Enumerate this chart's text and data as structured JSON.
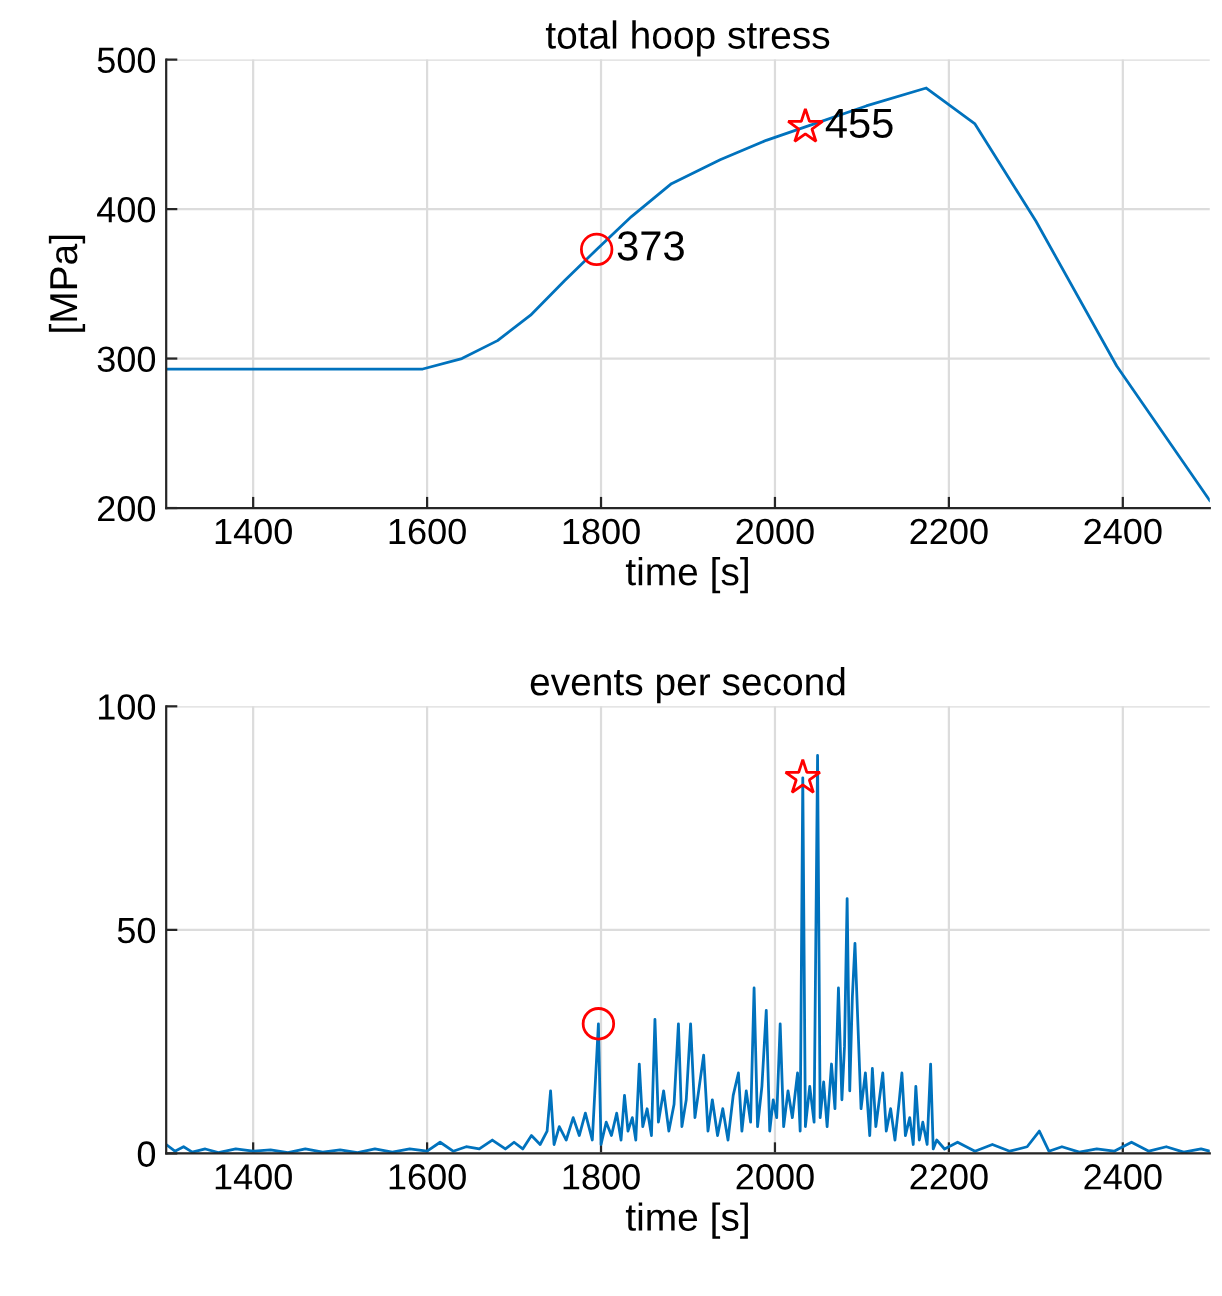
{
  "chart_data": [
    {
      "type": "line",
      "title": "total hoop stress",
      "xlabel": "time [s]",
      "ylabel": "[MPa]",
      "xlim": [
        1300,
        2500
      ],
      "ylim": [
        200,
        500
      ],
      "xticks": [
        1400,
        1600,
        1800,
        2000,
        2200,
        2400
      ],
      "yticks": [
        200,
        300,
        400,
        500
      ],
      "grid": true,
      "series": [
        {
          "color": "#0072bd",
          "x": [
            1300,
            1400,
            1500,
            1595,
            1640,
            1681,
            1719,
            1758,
            1795,
            1835,
            1881,
            1937,
            1990,
            2035,
            2105,
            2174,
            2230,
            2300,
            2393,
            2500
          ],
          "values": [
            293,
            293,
            293,
            293,
            300,
            312,
            329,
            352,
            373,
            395,
            417,
            433,
            446,
            455,
            469,
            481,
            457,
            392,
            295,
            205
          ]
        },
        {
          "type": "scatter",
          "marker": "circle",
          "color": "#ff0000",
          "x": [
            1795
          ],
          "values": [
            373
          ],
          "value_labels": [
            "373"
          ]
        },
        {
          "type": "scatter",
          "marker": "star",
          "color": "#ff0000",
          "x": [
            2035
          ],
          "values": [
            455
          ],
          "value_labels": [
            "455"
          ]
        }
      ]
    },
    {
      "type": "line",
      "title": "events per second",
      "xlabel": "time [s]",
      "xlim": [
        1300,
        2500
      ],
      "ylim": [
        0,
        100
      ],
      "xticks": [
        1400,
        1600,
        1800,
        2000,
        2200,
        2400
      ],
      "yticks": [
        0,
        50,
        100
      ],
      "grid": true,
      "series": [
        {
          "color": "#0072bd",
          "x": [
            1300,
            1310,
            1320,
            1330,
            1345,
            1360,
            1380,
            1400,
            1420,
            1440,
            1460,
            1480,
            1500,
            1520,
            1540,
            1560,
            1580,
            1600,
            1615,
            1630,
            1645,
            1660,
            1675,
            1690,
            1700,
            1710,
            1720,
            1730,
            1738,
            1742,
            1746,
            1752,
            1760,
            1768,
            1775,
            1782,
            1790,
            1797,
            1800,
            1806,
            1812,
            1818,
            1823,
            1827,
            1831,
            1836,
            1840,
            1844,
            1848,
            1853,
            1858,
            1862,
            1866,
            1872,
            1878,
            1884,
            1889,
            1893,
            1898,
            1903,
            1908,
            1913,
            1918,
            1923,
            1928,
            1934,
            1940,
            1946,
            1952,
            1958,
            1962,
            1967,
            1972,
            1976,
            1980,
            1985,
            1990,
            1994,
            1998,
            2002,
            2006,
            2010,
            2015,
            2020,
            2026,
            2029,
            2032,
            2035,
            2040,
            2045,
            2049,
            2052,
            2056,
            2060,
            2065,
            2069,
            2073,
            2077,
            2080,
            2083,
            2086,
            2089,
            2092,
            2095,
            2099,
            2104,
            2109,
            2112,
            2116,
            2120,
            2124,
            2128,
            2133,
            2138,
            2143,
            2146,
            2150,
            2155,
            2159,
            2162,
            2166,
            2170,
            2175,
            2179,
            2182,
            2186,
            2195,
            2210,
            2230,
            2250,
            2270,
            2290,
            2304,
            2315,
            2330,
            2350,
            2370,
            2390,
            2410,
            2430,
            2450,
            2470,
            2490,
            2500
          ],
          "values": [
            2,
            0.5,
            1.5,
            0.3,
            1,
            0.2,
            1,
            0.5,
            0.8,
            0.2,
            1,
            0.3,
            0.8,
            0.2,
            1,
            0.3,
            1,
            0.5,
            2.5,
            0.5,
            1.5,
            1,
            3,
            1,
            2.5,
            1,
            4,
            2,
            5,
            14,
            2,
            6,
            3,
            8,
            4,
            9,
            3,
            29,
            2,
            7,
            4,
            9,
            3,
            13,
            5,
            8,
            3,
            20,
            6,
            10,
            4,
            30,
            7,
            14,
            5,
            11,
            29,
            6,
            12,
            29,
            8,
            15,
            22,
            5,
            12,
            4,
            10,
            3,
            13,
            18,
            5,
            14,
            7,
            37,
            6,
            15,
            32,
            5,
            12,
            8,
            29,
            6,
            14,
            8,
            18,
            5,
            84,
            6,
            15,
            7,
            89,
            8,
            16,
            6,
            20,
            10,
            37,
            12,
            24,
            57,
            14,
            35,
            47,
            31,
            10,
            18,
            4,
            19,
            6,
            12,
            18,
            5,
            10,
            3,
            12,
            18,
            4,
            8,
            2,
            15,
            3,
            7,
            2,
            20,
            1,
            3,
            1,
            2.5,
            0.5,
            2,
            0.5,
            1.5,
            5,
            0.5,
            1.5,
            0.3,
            1,
            0.5,
            2.5,
            0.5,
            1.5,
            0.3,
            1,
            0.5
          ]
        },
        {
          "type": "scatter",
          "marker": "circle",
          "color": "#ff0000",
          "x": [
            1797
          ],
          "values": [
            29
          ]
        },
        {
          "type": "scatter",
          "marker": "star",
          "color": "#ff0000",
          "x": [
            2032
          ],
          "values": [
            84
          ]
        }
      ]
    }
  ]
}
